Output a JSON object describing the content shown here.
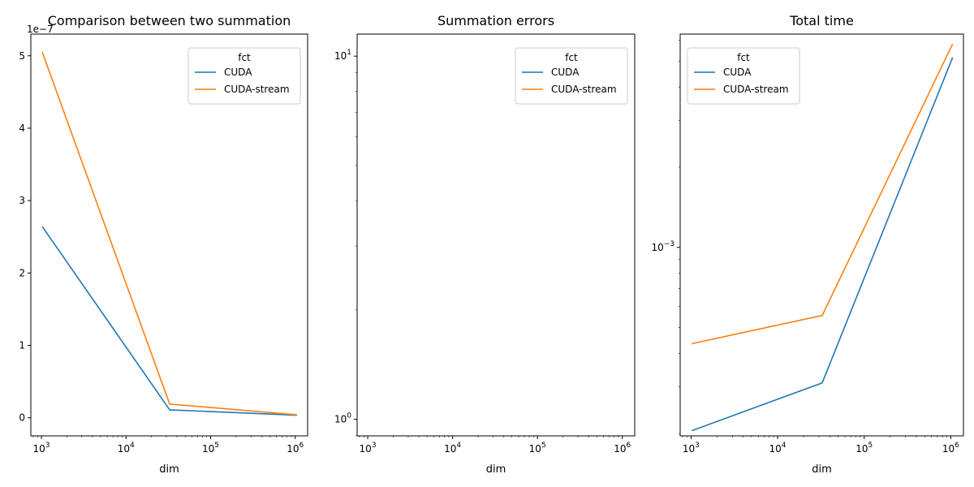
{
  "chart_data": [
    {
      "type": "line",
      "title": "Comparison between two summation",
      "xlabel": "dim",
      "ylabel": "",
      "xscale": "log",
      "yscale": "linear",
      "xlim": [
        750,
        1400000
      ],
      "ylim": [
        -2.5e-08,
        5.3e-07
      ],
      "x_ticks": [
        {
          "value": 1000,
          "label": "10^3"
        },
        {
          "value": 10000,
          "label": "10^4"
        },
        {
          "value": 100000,
          "label": "10^5"
        },
        {
          "value": 1000000,
          "label": "10^6"
        }
      ],
      "y_ticks": [
        {
          "value": 0,
          "label": "0"
        },
        {
          "value": 1e-07,
          "label": "1"
        },
        {
          "value": 2e-07,
          "label": "2"
        },
        {
          "value": 3e-07,
          "label": "3"
        },
        {
          "value": 4e-07,
          "label": "4"
        },
        {
          "value": 5e-07,
          "label": "5"
        }
      ],
      "offset_label": "1e−7",
      "legend": {
        "title": "fct",
        "position": "upper right"
      },
      "series": [
        {
          "name": "CUDA",
          "color": "#1f77b4",
          "x": [
            1024,
            32768,
            1048576
          ],
          "y": [
            2.64e-07,
            1.1e-08,
            3.5e-09
          ]
        },
        {
          "name": "CUDA-stream",
          "color": "#ff7f0e",
          "x": [
            1024,
            32768,
            1048576
          ],
          "y": [
            5.05e-07,
            1.9e-08,
            4e-09
          ]
        }
      ]
    },
    {
      "type": "line",
      "title": "Summation errors",
      "xlabel": "dim",
      "ylabel": "",
      "xscale": "log",
      "yscale": "log",
      "xlim": [
        750,
        1400000
      ],
      "ylim": [
        0.9,
        11.5
      ],
      "x_ticks": [
        {
          "value": 1000,
          "label": "10^3"
        },
        {
          "value": 10000,
          "label": "10^4"
        },
        {
          "value": 100000,
          "label": "10^5"
        },
        {
          "value": 1000000,
          "label": "10^6"
        }
      ],
      "y_ticks": [
        {
          "value": 1,
          "label": "10^0"
        },
        {
          "value": 10,
          "label": "10^1"
        }
      ],
      "legend": {
        "title": "fct",
        "position": "upper right"
      },
      "series": [
        {
          "name": "CUDA",
          "color": "#1f77b4",
          "x": [],
          "y": []
        },
        {
          "name": "CUDA-stream",
          "color": "#ff7f0e",
          "x": [],
          "y": []
        }
      ]
    },
    {
      "type": "line",
      "title": "Total time",
      "xlabel": "dim",
      "ylabel": "",
      "xscale": "log",
      "yscale": "log",
      "xlim": [
        750,
        1400000
      ],
      "ylim": [
        0.000196,
        0.00632
      ],
      "x_ticks": [
        {
          "value": 1000,
          "label": "10^3"
        },
        {
          "value": 10000,
          "label": "10^4"
        },
        {
          "value": 100000,
          "label": "10^5"
        },
        {
          "value": 1000000,
          "label": "10^6"
        }
      ],
      "y_ticks": [
        {
          "value": 0.001,
          "label": "10^−3"
        }
      ],
      "legend": {
        "title": "fct",
        "position": "upper left"
      },
      "series": [
        {
          "name": "CUDA",
          "color": "#1f77b4",
          "x": [
            1024,
            32768,
            1048576
          ],
          "y": [
            0.000205,
            0.00031,
            0.00516
          ]
        },
        {
          "name": "CUDA-stream",
          "color": "#ff7f0e",
          "x": [
            1024,
            32768,
            1048576
          ],
          "y": [
            0.000435,
            0.000555,
            0.0058
          ]
        }
      ]
    }
  ]
}
